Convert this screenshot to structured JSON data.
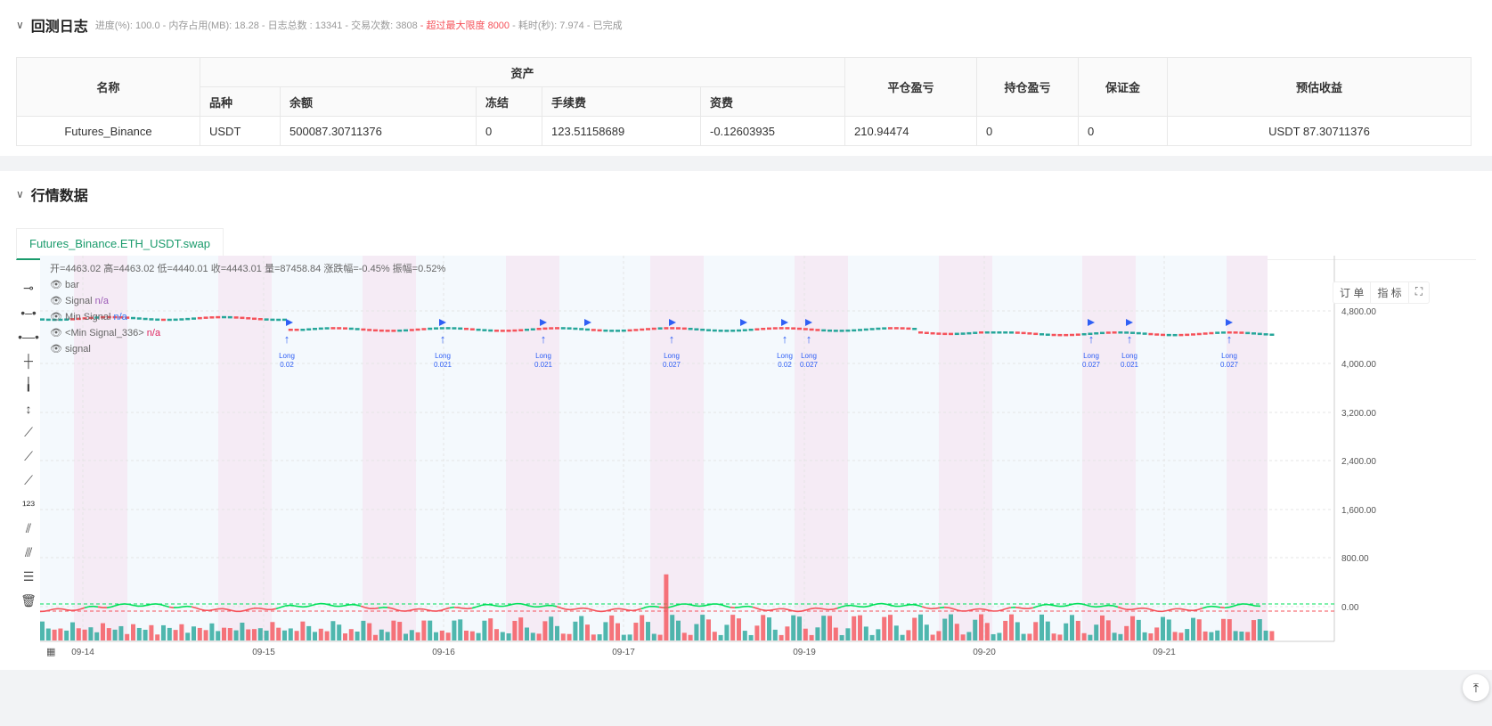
{
  "log": {
    "title": "回测日志",
    "progress": "进度(%): 100.0",
    "memory": "- 内存占用(MB): 18.28",
    "logs": "- 日志总数 : 13341",
    "trades": "- 交易次数:  3808",
    "warning": "- 超过最大限度 8000",
    "elapsed": "- 耗时(秒): 7.974 - 已完成"
  },
  "table": {
    "headers": {
      "name": "名称",
      "assets": "资产",
      "close_pnl": "平仓盈亏",
      "hold_pnl": "持仓盈亏",
      "margin": "保证金",
      "est": "预估收益"
    },
    "sub": [
      "品种",
      "余额",
      "冻结",
      "手续费",
      "资费"
    ],
    "row": {
      "name": "Futures_Binance",
      "symbol": "USDT",
      "balance": "500087.30711376",
      "frozen": "0",
      "fee": "123.51158689",
      "funding": "-0.12603935",
      "close_pnl": "210.94474",
      "hold_pnl": "0",
      "margin": "0",
      "est": "USDT 87.30711376"
    }
  },
  "market": {
    "title": "行情数据",
    "tab": "Futures_Binance.ETH_USDT.swap"
  },
  "chart": {
    "ohlc": "开=4463.02 高=4463.02 低=4440.01 收=4443.01 量=87458.84 涨跌幅=-0.45% 振幅=0.52%",
    "legend": [
      {
        "name": "bar",
        "value": ""
      },
      {
        "name": "Signal",
        "value": "n/a",
        "color": "#9b59b6"
      },
      {
        "name": "Min Signal",
        "value": "n/a",
        "color": "#2f7bf5"
      },
      {
        "name": "<Min Signal_336>",
        "value": "n/a",
        "color": "#e0245e"
      },
      {
        "name": "signal",
        "value": ""
      }
    ],
    "buttons": [
      "订 单",
      "指 标"
    ],
    "yticks": [
      "4,800.00",
      "4,000.00",
      "3,200.00",
      "2,400.00",
      "1,600.00",
      "800.00",
      "0.00"
    ],
    "xticks": [
      "09-14",
      "09-15",
      "09-16",
      "09-17",
      "09-19",
      "09-20",
      "09-21"
    ],
    "signals": [
      {
        "label": "Long",
        "qty": "0.02"
      },
      {
        "label": "Long",
        "qty": "0.021"
      },
      {
        "label": "Long",
        "qty": "0.021"
      },
      {
        "label": "Long",
        "qty": "0.027"
      },
      {
        "label": "Long",
        "qty": "0.02"
      },
      {
        "label": "Long",
        "qty": "0.027"
      },
      {
        "label": "Long",
        "qty": "0.027"
      },
      {
        "label": "Long",
        "qty": "0.021"
      },
      {
        "label": "Long",
        "qty": "0.027"
      }
    ],
    "colors": {
      "up": "#26a69a",
      "down": "#f5525a",
      "signal": "#2f5ff5",
      "pink_band": "#f5ebf5",
      "blue_band": "#f4f9fd",
      "osc_green": "#00e05a",
      "osc_red": "#f5525a"
    }
  }
}
